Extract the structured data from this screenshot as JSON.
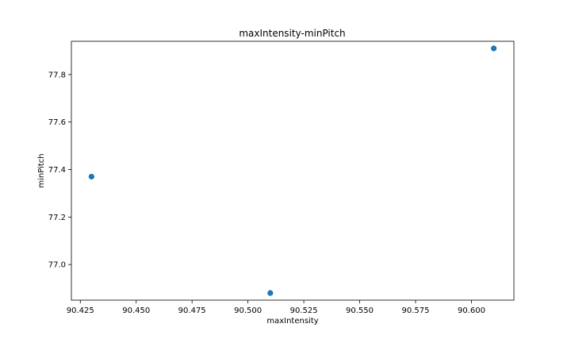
{
  "chart_data": {
    "type": "scatter",
    "title": "maxIntensity-minPitch",
    "xlabel": "maxIntensity",
    "ylabel": "minPitch",
    "xlim": [
      90.421,
      90.619
    ],
    "ylim": [
      76.85,
      77.94
    ],
    "xticks": [
      90.425,
      90.45,
      90.475,
      90.5,
      90.525,
      90.55,
      90.575,
      90.6
    ],
    "xtick_labels": [
      "90.425",
      "90.450",
      "90.475",
      "90.500",
      "90.525",
      "90.550",
      "90.575",
      "90.600"
    ],
    "yticks": [
      77.0,
      77.2,
      77.4,
      77.6,
      77.8
    ],
    "ytick_labels": [
      "77.0",
      "77.2",
      "77.4",
      "77.6",
      "77.8"
    ],
    "grid": false,
    "series": [
      {
        "x": [
          90.43,
          90.51,
          90.61
        ],
        "y": [
          77.37,
          76.88,
          77.91
        ],
        "color": "#1f77b4"
      }
    ]
  }
}
